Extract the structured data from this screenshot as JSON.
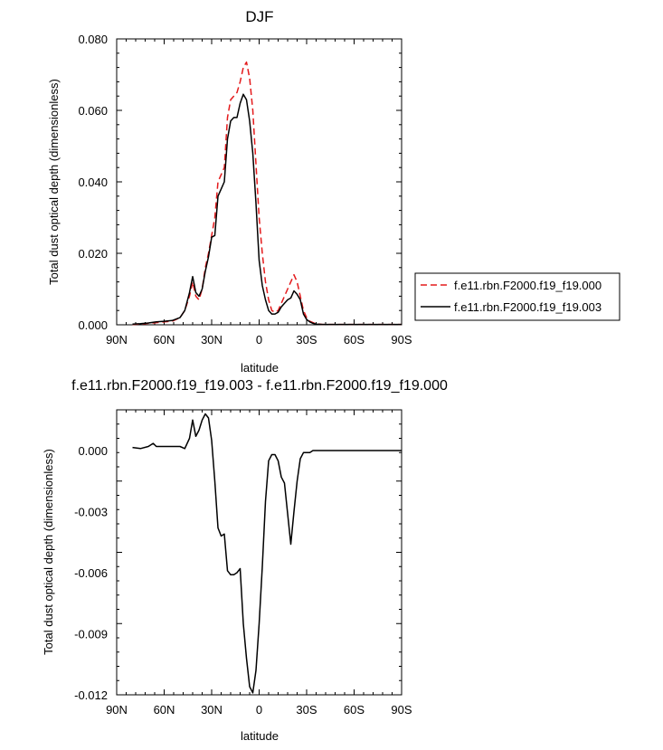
{
  "chart_data": [
    {
      "type": "line",
      "title": "DJF",
      "xlabel": "latitude",
      "ylabel": "Total dust optical depth (dimensionless)",
      "xlim": [
        90,
        -90
      ],
      "ylim": [
        0,
        0.08
      ],
      "xticks": [
        90,
        60,
        30,
        0,
        -30,
        -60,
        -90
      ],
      "xtick_labels": [
        "90N",
        "60N",
        "30N",
        "0",
        "30S",
        "60S",
        "90S"
      ],
      "yticks": [
        0,
        0.02,
        0.04,
        0.06,
        0.08
      ],
      "ytick_labels": [
        "0.000",
        "0.020",
        "0.040",
        "0.060",
        "0.080"
      ],
      "grid": false,
      "legend": "right",
      "series": [
        {
          "name": "f.e11.rbn.F2000.f19_f19.000",
          "color": "#e41a1c",
          "dash": "dashed",
          "x": [
            80,
            75,
            70,
            65,
            60,
            55,
            50,
            47,
            44,
            42,
            40,
            38,
            36,
            34,
            32,
            30,
            28,
            26,
            24,
            22,
            20,
            18,
            16,
            14,
            12,
            10,
            8,
            6,
            4,
            2,
            0,
            -2,
            -4,
            -6,
            -8,
            -10,
            -12,
            -14,
            -16,
            -18,
            -20,
            -22,
            -24,
            -26,
            -28,
            -30,
            -32,
            -34,
            -36,
            -40,
            -45,
            -50,
            -60,
            -70,
            -80,
            -90
          ],
          "y": [
            0.0001,
            0.0002,
            0.0004,
            0.0006,
            0.0008,
            0.001,
            0.002,
            0.004,
            0.008,
            0.012,
            0.008,
            0.007,
            0.01,
            0.016,
            0.02,
            0.025,
            0.03,
            0.04,
            0.042,
            0.044,
            0.058,
            0.063,
            0.064,
            0.065,
            0.068,
            0.072,
            0.0735,
            0.069,
            0.06,
            0.045,
            0.03,
            0.02,
            0.012,
            0.007,
            0.004,
            0.0035,
            0.004,
            0.006,
            0.008,
            0.01,
            0.012,
            0.014,
            0.012,
            0.008,
            0.004,
            0.002,
            0.001,
            0.0006,
            0.0003,
            0.0001,
            0.0001,
            0.0001,
            0.0001,
            0.0001,
            0.0001,
            0.0001
          ]
        },
        {
          "name": "f.e11.rbn.F2000.f19_f19.003",
          "color": "#000000",
          "dash": "solid",
          "x": [
            80,
            75,
            70,
            65,
            60,
            55,
            50,
            47,
            44,
            42,
            40,
            38,
            36,
            34,
            32,
            30,
            28,
            26,
            24,
            22,
            20,
            18,
            16,
            14,
            12,
            10,
            8,
            6,
            4,
            2,
            0,
            -2,
            -4,
            -6,
            -8,
            -10,
            -12,
            -14,
            -16,
            -18,
            -20,
            -22,
            -24,
            -26,
            -28,
            -30,
            -32,
            -34,
            -36,
            -40,
            -45,
            -50,
            -60,
            -70,
            -80,
            -90
          ],
          "y": [
            0.0002,
            0.0003,
            0.0005,
            0.0008,
            0.001,
            0.0012,
            0.002,
            0.004,
            0.009,
            0.0135,
            0.009,
            0.008,
            0.01,
            0.015,
            0.019,
            0.0245,
            0.025,
            0.036,
            0.038,
            0.04,
            0.052,
            0.057,
            0.058,
            0.058,
            0.062,
            0.0645,
            0.063,
            0.057,
            0.048,
            0.034,
            0.018,
            0.011,
            0.007,
            0.004,
            0.003,
            0.003,
            0.0035,
            0.005,
            0.006,
            0.007,
            0.0075,
            0.0095,
            0.0085,
            0.007,
            0.003,
            0.0015,
            0.0008,
            0.0004,
            0.0002,
            0.0001,
            0.0001,
            0.0001,
            0.0001,
            0.0001,
            0.0001,
            0.0001
          ]
        }
      ]
    },
    {
      "type": "line",
      "title": "f.e11.rbn.F2000.f19_f19.003 - f.e11.rbn.F2000.f19_f19.000",
      "xlabel": "latitude",
      "ylabel": "Total dust optical depth (dimensionless)",
      "xlim": [
        90,
        -90
      ],
      "ylim": [
        -0.012,
        0.002
      ],
      "xticks": [
        90,
        60,
        30,
        0,
        -30,
        -60,
        -90
      ],
      "xtick_labels": [
        "90N",
        "60N",
        "30N",
        "0",
        "30S",
        "60S",
        "90S"
      ],
      "yticks": [
        -0.012,
        -0.009,
        -0.006,
        -0.003,
        0
      ],
      "ytick_labels": [
        "-0.012",
        "-0.009",
        "-0.006",
        "-0.003",
        "0.000"
      ],
      "grid": false,
      "series": [
        {
          "color": "#000000",
          "dash": "solid",
          "x": [
            80,
            75,
            70,
            67,
            65,
            60,
            55,
            50,
            47,
            44,
            42,
            40,
            38,
            36,
            34,
            32,
            30,
            28,
            26,
            24,
            22,
            20,
            18,
            16,
            14,
            12,
            10,
            8,
            6,
            4,
            2,
            0,
            -2,
            -4,
            -6,
            -8,
            -10,
            -12,
            -14,
            -16,
            -18,
            -20,
            -22,
            -24,
            -26,
            -28,
            -30,
            -32,
            -34,
            -36,
            -40,
            -45,
            -50,
            -60,
            -70,
            -80,
            -90
          ],
          "y": [
            0.00015,
            0.0001,
            0.0002,
            0.00035,
            0.0002,
            0.0002,
            0.0002,
            0.0002,
            0.0001,
            0.0006,
            0.0015,
            0.0007,
            0.001,
            0.0015,
            0.0018,
            0.0016,
            0.0005,
            -0.0015,
            -0.0038,
            -0.0042,
            -0.0041,
            -0.0059,
            -0.0061,
            -0.0061,
            -0.006,
            -0.0058,
            -0.0085,
            -0.0102,
            -0.0116,
            -0.0119,
            -0.0108,
            -0.0085,
            -0.0057,
            -0.0025,
            -0.0005,
            -0.0002,
            -0.0002,
            -0.0005,
            -0.0013,
            -0.0016,
            -0.0031,
            -0.0046,
            -0.003,
            -0.0015,
            -0.0004,
            -0.0001,
            -0.0001,
            -0.0001,
            0.0,
            0.0,
            0.0,
            0.0,
            0.0,
            0.0,
            0.0,
            0.0,
            0.0
          ]
        }
      ]
    }
  ]
}
